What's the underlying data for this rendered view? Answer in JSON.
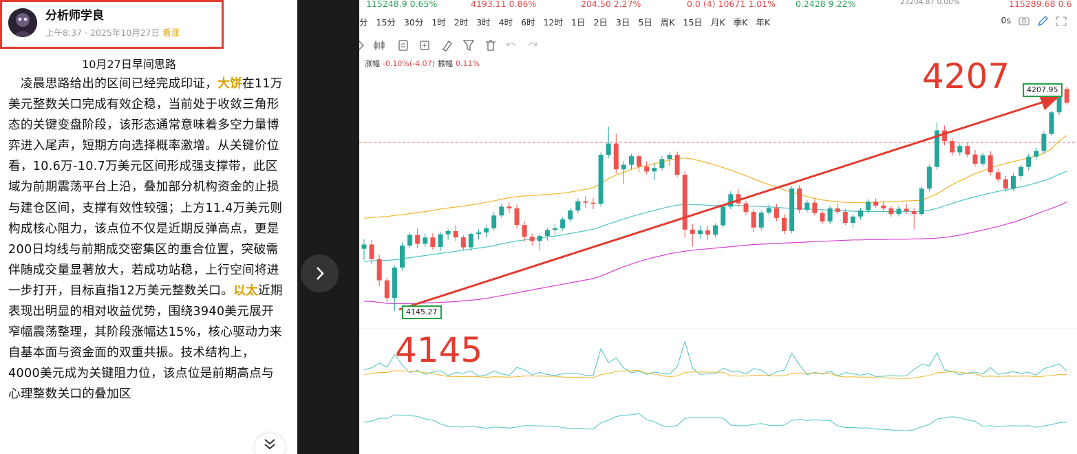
{
  "post": {
    "author": "分析师学良",
    "time": "上午8:37",
    "date": "2025年10月27日",
    "tag": "看涨",
    "title": "10月27日早间思路",
    "p1_a": "凌晨思路给出的区间已经完成印证，",
    "hl1": "大饼",
    "p1_b": "在11万美元整数关口完成有效企稳，当前处于收敛三角形态的关键变盘阶段，该形态通常意味着多空力量博弈进入尾声，短期方向选择概率激增。从关键价位看，10.6万-10.7万美元区间形成强支撑带，此区域为前期震荡平台上沿，叠加部分机构资金的止损与建仓区间，支撑有效性较强；上方11.4万美元则构成核心阻力，该点位不仅是近期反弹高点，更是200日均线与前期成交密集区的重合位置，突破需伴随成交量显著放大，若成功站稳，上行空间将进一步打开，目标直指12万美元整数关口。",
    "hl2": "以太",
    "p2": "近期表现出明显的相对收益优势，围绕3940美元展开窄幅震荡整理，其阶段涨幅达15%，核心驱动力来自基本面与资金面的双重共振。技术结构上，4000美元成为关键阻力位，该点位是前期高点与心理整数关口的叠加区"
  },
  "ticker": [
    {
      "text": "115248.9  0.65%",
      "color": "green"
    },
    {
      "text": "4193.11  0.86%",
      "color": "red"
    },
    {
      "text": "204.50  2.27%",
      "color": "red"
    },
    {
      "text": "0.0 (4)  10671  1.01%",
      "color": "red"
    },
    {
      "text": "0.2428  9.22%",
      "color": "green"
    },
    {
      "text": "23204.87  0.00%",
      "color": "gray"
    },
    {
      "text": "115289.68  0.6",
      "color": "red"
    }
  ],
  "timeframes": [
    "分",
    "15分",
    "30分",
    "1时",
    "2时",
    "3时",
    "4时",
    "6时",
    "12时",
    "1日",
    "2日",
    "3日",
    "5日",
    "周K",
    "15日",
    "月K",
    "季K",
    "年K"
  ],
  "toolbar_right": "0s",
  "change_line": {
    "zhangfu_label": "涨幅",
    "zhangfu": "-0.10%(-4.07)",
    "zhenfu_label": "振幅",
    "zhenfu": "0.11%"
  },
  "annotations": {
    "high_big": "4207",
    "low_big": "4145",
    "high_label": "4207.95",
    "low_label": "4145.27"
  },
  "colors": {
    "up": "#26a69a",
    "down": "#ef5350",
    "annotation": "#e23b2f",
    "box": "#22a244",
    "upper_band": "#f0b429",
    "mid_band": "#4dc3c3",
    "lower_band": "#d63ed0"
  },
  "chart_data": {
    "type": "candlestick",
    "title": "",
    "xlabel": "",
    "ylabel": "",
    "ylim": [
      4130,
      4215
    ],
    "candles": [
      [
        4162.8,
        4165.5,
        4159.7,
        4164.0
      ],
      [
        4164.0,
        4165.2,
        4158.5,
        4159.9
      ],
      [
        4159.9,
        4161.1,
        4152.3,
        4153.9
      ],
      [
        4153.9,
        4154.7,
        4147.8,
        4148.9
      ],
      [
        4148.9,
        4158.0,
        4145.3,
        4157.5
      ],
      [
        4157.5,
        4164.6,
        4156.7,
        4163.7
      ],
      [
        4163.7,
        4167.4,
        4162.9,
        4166.7
      ],
      [
        4166.7,
        4168.5,
        4163.0,
        4164.2
      ],
      [
        4164.2,
        4167.0,
        4163.3,
        4166.0
      ],
      [
        4166.0,
        4167.2,
        4162.5,
        4163.3
      ],
      [
        4163.3,
        4167.5,
        4162.2,
        4166.9
      ],
      [
        4166.9,
        4168.4,
        4165.3,
        4167.8
      ],
      [
        4167.8,
        4169.5,
        4165.0,
        4166.0
      ],
      [
        4166.0,
        4166.6,
        4162.4,
        4163.2
      ],
      [
        4163.2,
        4167.5,
        4162.2,
        4167.0
      ],
      [
        4167.0,
        4168.3,
        4165.5,
        4167.4
      ],
      [
        4167.4,
        4169.4,
        4166.0,
        4168.6
      ],
      [
        4168.6,
        4173.2,
        4168.0,
        4172.2
      ],
      [
        4172.2,
        4175.5,
        4171.6,
        4174.7
      ],
      [
        4174.7,
        4176.0,
        4172.8,
        4174.2
      ],
      [
        4174.2,
        4175.3,
        4168.5,
        4169.5
      ],
      [
        4169.5,
        4170.6,
        4164.8,
        4166.2
      ],
      [
        4166.2,
        4167.1,
        4163.7,
        4165.0
      ],
      [
        4165.0,
        4167.0,
        4162.4,
        4166.4
      ],
      [
        4166.4,
        4168.7,
        4165.1,
        4168.1
      ],
      [
        4168.1,
        4169.9,
        4166.7,
        4168.6
      ],
      [
        4168.6,
        4171.8,
        4167.9,
        4171.1
      ],
      [
        4171.1,
        4174.3,
        4170.4,
        4173.6
      ],
      [
        4173.6,
        4177.0,
        4172.8,
        4176.2
      ],
      [
        4176.2,
        4177.6,
        4174.4,
        4175.8
      ],
      [
        4175.8,
        4177.2,
        4174.0,
        4175.5
      ],
      [
        4175.5,
        4190.0,
        4174.7,
        4189.3
      ],
      [
        4189.3,
        4197.2,
        4188.3,
        4192.5
      ],
      [
        4192.5,
        4195.2,
        4184.0,
        4185.2
      ],
      [
        4185.2,
        4187.5,
        4181.0,
        4186.5
      ],
      [
        4186.5,
        4189.6,
        4185.2,
        4188.9
      ],
      [
        4188.9,
        4189.6,
        4184.5,
        4186.0
      ],
      [
        4186.0,
        4187.5,
        4183.8,
        4184.6
      ],
      [
        4184.6,
        4186.9,
        4182.2,
        4185.6
      ],
      [
        4185.6,
        4189.0,
        4184.9,
        4188.1
      ],
      [
        4188.1,
        4190.0,
        4186.2,
        4189.3
      ],
      [
        4189.3,
        4190.2,
        4183.0,
        4183.7
      ],
      [
        4183.7,
        4184.6,
        4166.0,
        4168.2
      ],
      [
        4168.2,
        4169.8,
        4163.4,
        4167.0
      ],
      [
        4167.0,
        4169.4,
        4165.7,
        4168.0
      ],
      [
        4168.0,
        4169.2,
        4165.3,
        4166.8
      ],
      [
        4166.8,
        4170.0,
        4166.0,
        4169.4
      ],
      [
        4169.4,
        4175.2,
        4168.7,
        4174.7
      ],
      [
        4174.7,
        4179.0,
        4174.0,
        4178.2
      ],
      [
        4178.2,
        4179.7,
        4174.7,
        4175.6
      ],
      [
        4175.6,
        4176.3,
        4172.4,
        4173.2
      ],
      [
        4173.2,
        4173.9,
        4167.6,
        4168.8
      ],
      [
        4168.8,
        4173.6,
        4168.0,
        4173.0
      ],
      [
        4173.0,
        4175.3,
        4172.2,
        4174.3
      ],
      [
        4174.3,
        4175.5,
        4170.6,
        4171.5
      ],
      [
        4171.5,
        4172.5,
        4167.0,
        4167.8
      ],
      [
        4167.8,
        4180.5,
        4167.2,
        4179.8
      ],
      [
        4179.8,
        4180.7,
        4172.8,
        4173.8
      ],
      [
        4173.8,
        4176.5,
        4173.0,
        4175.8
      ],
      [
        4175.8,
        4176.8,
        4172.2,
        4172.9
      ],
      [
        4172.9,
        4173.5,
        4169.7,
        4170.5
      ],
      [
        4170.5,
        4175.0,
        4169.8,
        4174.2
      ],
      [
        4174.2,
        4175.6,
        4172.6,
        4173.2
      ],
      [
        4173.2,
        4174.0,
        4169.5,
        4170.1
      ],
      [
        4170.1,
        4172.5,
        4168.6,
        4171.9
      ],
      [
        4171.9,
        4174.3,
        4171.0,
        4173.6
      ],
      [
        4173.6,
        4176.8,
        4172.8,
        4176.1
      ],
      [
        4176.1,
        4177.1,
        4174.4,
        4175.0
      ],
      [
        4175.0,
        4176.2,
        4173.4,
        4174.2
      ],
      [
        4174.2,
        4174.9,
        4171.8,
        4172.6
      ],
      [
        4172.6,
        4174.8,
        4171.9,
        4174.1
      ],
      [
        4174.1,
        4175.6,
        4172.6,
        4173.4
      ],
      [
        4173.4,
        4174.2,
        4168.3,
        4172.6
      ],
      [
        4172.6,
        4180.3,
        4172.0,
        4179.8
      ],
      [
        4179.8,
        4186.5,
        4179.0,
        4185.9
      ],
      [
        4185.9,
        4198.5,
        4185.1,
        4196.2
      ],
      [
        4196.2,
        4197.6,
        4192.0,
        4193.2
      ],
      [
        4193.2,
        4194.0,
        4189.0,
        4190.0
      ],
      [
        4190.0,
        4192.6,
        4189.1,
        4191.8
      ],
      [
        4191.8,
        4192.9,
        4188.6,
        4189.4
      ],
      [
        4189.4,
        4190.7,
        4186.0,
        4186.8
      ],
      [
        4186.8,
        4189.9,
        4186.1,
        4189.2
      ],
      [
        4189.2,
        4190.3,
        4183.5,
        4184.4
      ],
      [
        4184.4,
        4185.3,
        4181.6,
        4182.4
      ],
      [
        4182.4,
        4183.3,
        4179.0,
        4179.8
      ],
      [
        4179.8,
        4184.0,
        4179.1,
        4183.3
      ],
      [
        4183.3,
        4186.5,
        4182.4,
        4185.9
      ],
      [
        4185.9,
        4189.6,
        4185.0,
        4188.8
      ],
      [
        4188.8,
        4191.3,
        4188.0,
        4190.4
      ],
      [
        4190.4,
        4196.0,
        4189.7,
        4195.2
      ],
      [
        4195.2,
        4201.8,
        4194.6,
        4201.3
      ],
      [
        4201.3,
        4209.0,
        4200.5,
        4207.9
      ],
      [
        4207.9,
        4208.5,
        4203.4,
        4204.0
      ]
    ],
    "ma_upper": [
      4171.4,
      4171.6,
      4171.8,
      4171.9,
      4172.2,
      4172.4,
      4172.7,
      4173.0,
      4173.3,
      4173.6,
      4174.0,
      4174.3,
      4174.6,
      4174.9,
      4175.2,
      4175.5,
      4175.9,
      4176.3,
      4176.8,
      4177.2,
      4177.5,
      4177.7,
      4177.8,
      4178.0,
      4178.1,
      4178.3,
      4178.5,
      4178.8,
      4179.2,
      4179.6,
      4180.0,
      4181.2,
      4182.6,
      4183.6,
      4184.4,
      4185.2,
      4185.8,
      4186.3,
      4186.8,
      4187.3,
      4187.8,
      4188.2,
      4188.4,
      4188.1,
      4187.6,
      4187.0,
      4186.4,
      4185.7,
      4185.0,
      4184.2,
      4183.4,
      4182.5,
      4181.7,
      4180.9,
      4180.2,
      4179.4,
      4178.8,
      4178.1,
      4177.5,
      4177.0,
      4176.6,
      4176.3,
      4176.1,
      4175.9,
      4175.8,
      4175.8,
      4175.8,
      4175.9,
      4176.0,
      4176.1,
      4176.2,
      4176.3,
      4176.4,
      4176.5,
      4177.3,
      4178.3,
      4179.6,
      4180.9,
      4182.0,
      4183.0,
      4184.0,
      4184.8,
      4185.6,
      4186.3,
      4186.9,
      4187.4,
      4187.9,
      4188.4,
      4189.0,
      4189.7,
      4191.0,
      4193.2,
      4194.8
    ],
    "ma_mid": [
      4159.2,
      4159.4,
      4159.5,
      4159.5,
      4159.7,
      4160.0,
      4160.3,
      4160.6,
      4160.9,
      4161.2,
      4161.5,
      4161.8,
      4162.1,
      4162.4,
      4162.7,
      4163.0,
      4163.3,
      4163.7,
      4164.2,
      4164.6,
      4165.0,
      4165.3,
      4165.5,
      4165.8,
      4166.1,
      4166.4,
      4166.7,
      4167.1,
      4167.5,
      4167.9,
      4168.3,
      4169.0,
      4169.8,
      4170.5,
      4171.2,
      4171.9,
      4172.5,
      4173.1,
      4173.6,
      4174.2,
      4174.7,
      4175.1,
      4175.3,
      4175.3,
      4175.2,
      4175.1,
      4175.0,
      4175.0,
      4175.0,
      4175.0,
      4174.9,
      4174.8,
      4174.7,
      4174.6,
      4174.5,
      4174.3,
      4174.2,
      4174.1,
      4174.0,
      4173.9,
      4173.8,
      4173.7,
      4173.6,
      4173.5,
      4173.4,
      4173.3,
      4173.3,
      4173.3,
      4173.3,
      4173.3,
      4173.3,
      4173.3,
      4173.3,
      4173.4,
      4173.7,
      4174.2,
      4174.9,
      4175.6,
      4176.3,
      4176.9,
      4177.5,
      4178.0,
      4178.5,
      4179.0,
      4179.4,
      4179.8,
      4180.3,
      4180.8,
      4181.4,
      4182.0,
      4182.8,
      4183.8,
      4184.7
    ],
    "ma_lower": [
      4148.0,
      4147.9,
      4147.7,
      4147.4,
      4147.3,
      4147.3,
      4147.3,
      4147.4,
      4147.5,
      4147.6,
      4147.7,
      4147.8,
      4147.9,
      4148.1,
      4148.3,
      4148.5,
      4148.8,
      4149.2,
      4149.6,
      4150.0,
      4150.4,
      4150.8,
      4151.2,
      4151.6,
      4152.0,
      4152.4,
      4152.8,
      4153.2,
      4153.6,
      4154.0,
      4154.4,
      4155.1,
      4156.0,
      4156.9,
      4157.7,
      4158.5,
      4159.2,
      4159.8,
      4160.4,
      4160.9,
      4161.4,
      4161.8,
      4162.1,
      4162.4,
      4162.6,
      4162.8,
      4163.0,
      4163.2,
      4163.4,
      4163.6,
      4163.8,
      4164.0,
      4164.1,
      4164.2,
      4164.3,
      4164.4,
      4164.5,
      4164.6,
      4164.7,
      4164.8,
      4164.9,
      4165.0,
      4165.1,
      4165.2,
      4165.3,
      4165.3,
      4165.4,
      4165.4,
      4165.4,
      4165.5,
      4165.5,
      4165.5,
      4165.6,
      4165.6,
      4165.7,
      4165.8,
      4166.0,
      4166.3,
      4166.7,
      4167.1,
      4167.6,
      4168.1,
      4168.6,
      4169.1,
      4169.7,
      4170.3,
      4171.0,
      4171.8,
      4172.6,
      4173.4,
      4174.2,
      4175.0,
      4176.0
    ],
    "high_marker": 4207.95,
    "low_marker": 4145.27
  }
}
